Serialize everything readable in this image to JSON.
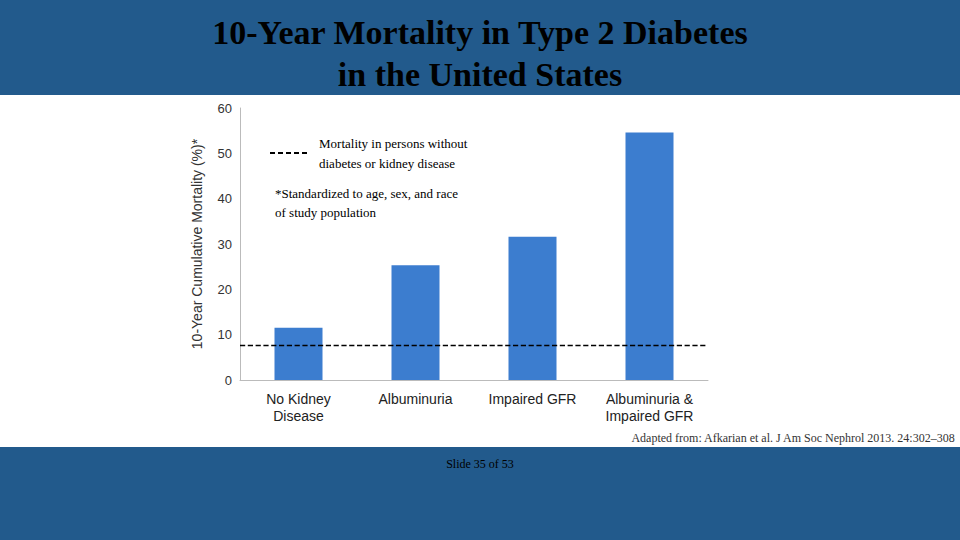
{
  "chart_data": {
    "type": "bar",
    "title": "10-Year Mortality in Type 2 Diabetes\nin the United States",
    "y_label": "10-Year Cumulative Mortality (%)*",
    "categories": [
      "No Kidney\nDisease",
      "Albuminuria",
      "Impaired GFR",
      "Albuminuria &\nImpaired GFR"
    ],
    "values": [
      11.5,
      25.3,
      31.6,
      54.6
    ],
    "color": "#3c7dcf",
    "ylim": [
      0,
      60
    ],
    "yticks": [
      0,
      10,
      20,
      30,
      40,
      50,
      60
    ],
    "grid": false,
    "reference_line": {
      "value": 7.7,
      "label": "Mortality in persons without\ndiabetes or kidney disease",
      "line_style": "dashed"
    },
    "footnote": "*Standardized to age, sex, and race\nof study population",
    "source": "Adapted from: Afkarian et al. J Am Soc Nephrol 2013. 24:302–308",
    "slide_label": "Slide 35 of 53"
  }
}
